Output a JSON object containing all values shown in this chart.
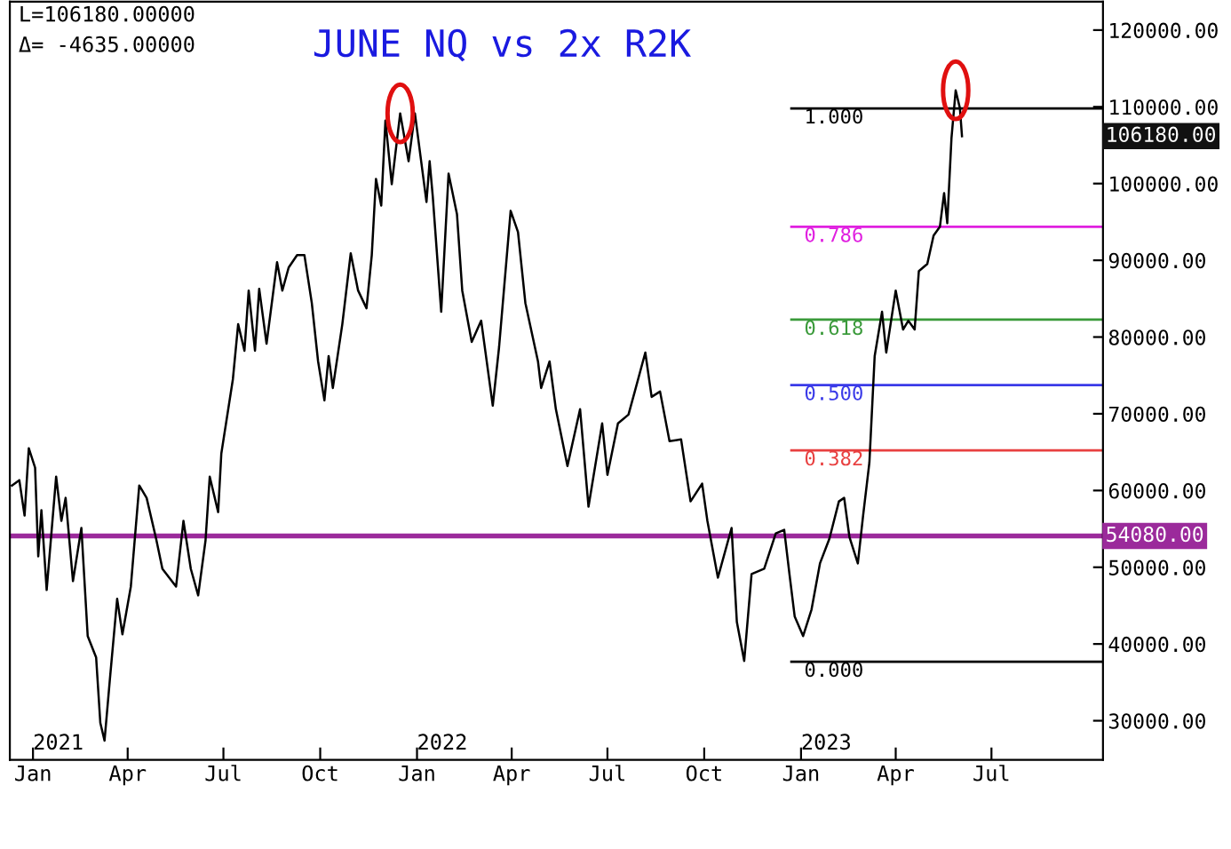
{
  "chart_data": {
    "type": "line",
    "title": "JUNE NQ vs 2x R2K",
    "x": [
      "2020-12-12",
      "2020-12-19",
      "2020-12-24",
      "2020-12-28",
      "2021-01-03",
      "2021-01-06",
      "2021-01-09",
      "2021-01-14",
      "2021-01-23",
      "2021-01-28",
      "2021-02-01",
      "2021-02-08",
      "2021-02-16",
      "2021-02-22",
      "2021-03-02",
      "2021-03-06",
      "2021-03-10",
      "2021-03-15",
      "2021-03-22",
      "2021-03-27",
      "2021-04-04",
      "2021-04-12",
      "2021-04-19",
      "2021-04-28",
      "2021-05-04",
      "2021-05-17",
      "2021-05-24",
      "2021-05-31",
      "2021-06-07",
      "2021-06-14",
      "2021-06-18",
      "2021-06-26",
      "2021-06-29",
      "2021-07-10",
      "2021-07-15",
      "2021-07-21",
      "2021-07-25",
      "2021-07-31",
      "2021-08-04",
      "2021-08-11",
      "2021-08-21",
      "2021-08-26",
      "2021-09-01",
      "2021-09-09",
      "2021-09-16",
      "2021-09-23",
      "2021-09-29",
      "2021-10-05",
      "2021-10-09",
      "2021-10-13",
      "2021-10-22",
      "2021-10-30",
      "2021-11-06",
      "2021-11-14",
      "2021-11-19",
      "2021-11-23",
      "2021-11-28",
      "2021-12-02",
      "2021-12-08",
      "2021-12-16",
      "2021-12-24",
      "2021-12-30",
      "2022-01-10",
      "2022-01-13",
      "2022-01-16",
      "2022-01-24",
      "2022-01-31",
      "2022-02-08",
      "2022-02-13",
      "2022-02-22",
      "2022-03-03",
      "2022-03-14",
      "2022-03-20",
      "2022-03-31",
      "2022-04-07",
      "2022-04-14",
      "2022-04-26",
      "2022-04-29",
      "2022-05-07",
      "2022-05-13",
      "2022-05-24",
      "2022-06-05",
      "2022-06-13",
      "2022-06-26",
      "2022-07-01",
      "2022-07-11",
      "2022-07-21",
      "2022-07-27",
      "2022-08-06",
      "2022-08-12",
      "2022-08-20",
      "2022-08-29",
      "2022-09-09",
      "2022-09-18",
      "2022-09-29",
      "2022-10-04",
      "2022-10-14",
      "2022-10-27",
      "2022-11-01",
      "2022-11-08",
      "2022-11-15",
      "2022-11-27",
      "2022-12-08",
      "2022-12-16",
      "2022-12-21",
      "2022-12-26",
      "2023-01-03",
      "2023-01-11",
      "2023-01-19",
      "2023-01-28",
      "2023-02-06",
      "2023-02-11",
      "2023-02-16",
      "2023-02-24",
      "2023-03-01",
      "2023-03-07",
      "2023-03-12",
      "2023-03-19",
      "2023-03-23",
      "2023-04-01",
      "2023-04-08",
      "2023-04-13",
      "2023-04-19",
      "2023-04-23",
      "2023-05-01",
      "2023-05-07",
      "2023-05-13",
      "2023-05-17",
      "2023-05-20",
      "2023-05-24",
      "2023-05-28",
      "2023-06-01",
      "2023-06-03"
    ],
    "series": [
      {
        "color": "#000000",
        "values": [
          60650,
          61350,
          56730,
          65510,
          62970,
          51420,
          57430,
          47040,
          61810,
          56040,
          59040,
          48190,
          55120,
          41030,
          38260,
          29720,
          27410,
          35260,
          45880,
          41260,
          47490,
          60650,
          59040,
          53730,
          49800,
          47490,
          56040,
          49800,
          46340,
          53500,
          61810,
          57190,
          64810,
          74510,
          81670,
          78210,
          86060,
          78210,
          86290,
          79130,
          89750,
          86060,
          89060,
          90670,
          90670,
          84440,
          76820,
          71740,
          77520,
          73360,
          81670,
          90910,
          86060,
          83750,
          90670,
          100600,
          97140,
          108220,
          99910,
          109150,
          102910,
          109150,
          97600,
          102910,
          98300,
          83290,
          101300,
          95990,
          86060,
          79360,
          82130,
          71050,
          78670,
          96450,
          93680,
          84440,
          76820,
          73360,
          76820,
          70590,
          63200,
          70590,
          57890,
          68740,
          62040,
          68740,
          69890,
          72900,
          77980,
          72200,
          72900,
          66430,
          66660,
          58580,
          60890,
          56040,
          48650,
          55120,
          42880,
          37800,
          49110,
          49800,
          54420,
          54880,
          49110,
          43570,
          41030,
          44500,
          50500,
          53730,
          58580,
          59040,
          53960,
          50500,
          56730,
          63660,
          77520,
          83290,
          77980,
          86060,
          80980,
          82130,
          80980,
          88600,
          89520,
          93220,
          94370,
          98760,
          94830,
          105910,
          112150,
          109840,
          106180
        ]
      }
    ],
    "xlim": [
      "2020-12-10",
      "2023-10-15"
    ],
    "xticks": [
      {
        "value": "2021-01-01",
        "label": "Jan"
      },
      {
        "value": "2021-04-01",
        "label": "Apr"
      },
      {
        "value": "2021-07-01",
        "label": "Jul"
      },
      {
        "value": "2021-10-01",
        "label": "Oct"
      },
      {
        "value": "2022-01-01",
        "label": "Jan"
      },
      {
        "value": "2022-04-01",
        "label": "Apr"
      },
      {
        "value": "2022-07-01",
        "label": "Jul"
      },
      {
        "value": "2022-10-01",
        "label": "Oct"
      },
      {
        "value": "2023-01-01",
        "label": "Jan"
      },
      {
        "value": "2023-04-01",
        "label": "Apr"
      },
      {
        "value": "2023-07-01",
        "label": "Jul"
      }
    ],
    "ylim": [
      24900,
      123700
    ],
    "yticks": [
      {
        "value": 30000,
        "label": "30000.00"
      },
      {
        "value": 40000,
        "label": "40000.00"
      },
      {
        "value": 50000,
        "label": "50000.00"
      },
      {
        "value": 60000,
        "label": "60000.00"
      },
      {
        "value": 70000,
        "label": "70000.00"
      },
      {
        "value": 80000,
        "label": "80000.00"
      },
      {
        "value": 90000,
        "label": "90000.00"
      },
      {
        "value": 100000,
        "label": "100000.00"
      },
      {
        "value": 110000,
        "label": "110000.00"
      },
      {
        "value": 120000,
        "label": "120000.00"
      }
    ],
    "ref_lines": [
      {
        "axis": "y",
        "value": 54080,
        "label": "54080.00",
        "color": "#9b2a9b"
      },
      {
        "axis": "y",
        "value": 109800,
        "color": "#000000"
      },
      {
        "axis": "y",
        "value": 94370,
        "color": "#e020e0"
      },
      {
        "axis": "y",
        "value": 82260,
        "color": "#3a9a3a"
      },
      {
        "axis": "y",
        "value": 73750,
        "color": "#3a3ae8"
      },
      {
        "axis": "y",
        "value": 65240,
        "color": "#e84040"
      },
      {
        "axis": "y",
        "value": 37700,
        "color": "#000000"
      }
    ],
    "annotations": [
      "L=106180.00000",
      "Δ= -4635.00000",
      "106180.00",
      "2021",
      "2022",
      "2023",
      {
        "text": "1.000",
        "x": "2023-01-04",
        "y": 109800
      },
      {
        "text": "0.786",
        "x": "2023-01-04",
        "y": 94370
      },
      {
        "text": "0.618",
        "x": "2023-01-04",
        "y": 82260
      },
      {
        "text": "0.500",
        "x": "2023-01-04",
        "y": 73750
      },
      {
        "text": "0.382",
        "x": "2023-01-04",
        "y": 65240
      },
      {
        "text": "0.000",
        "x": "2023-01-04",
        "y": 37700
      }
    ],
    "grid": false,
    "marker": "none",
    "line_style": "solid"
  }
}
